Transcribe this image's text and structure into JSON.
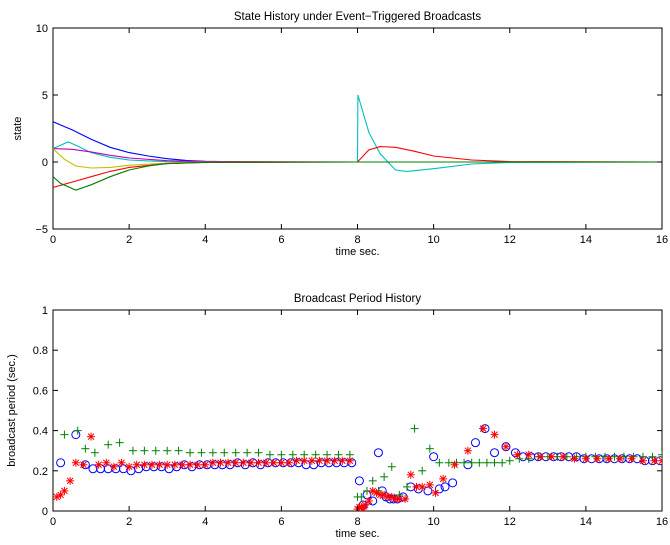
{
  "chart_data": [
    {
      "type": "line",
      "title": "State History under Event−Triggered Broadcasts",
      "xlabel": "time sec.",
      "ylabel": "state",
      "xlim": [
        0,
        16
      ],
      "ylim": [
        -5,
        10
      ],
      "xticks": [
        "0",
        "2",
        "4",
        "6",
        "8",
        "10",
        "12",
        "14",
        "16"
      ],
      "yticks": [
        "−5",
        "0",
        "5",
        "10"
      ],
      "grid": false,
      "series": [
        {
          "color": "#0000ff",
          "x": [
            0,
            0.5,
            1,
            1.5,
            2,
            2.5,
            3,
            3.5,
            4,
            5,
            6,
            8,
            16
          ],
          "values": [
            3,
            2.4,
            1.7,
            1.1,
            0.7,
            0.45,
            0.25,
            0.12,
            0.05,
            0.01,
            0,
            0,
            0
          ]
        },
        {
          "color": "#00bfbf",
          "x": [
            0,
            0.4,
            0.6,
            1,
            1.5,
            2,
            2.5,
            3,
            4,
            6,
            8,
            8.01,
            8.3,
            8.6,
            9,
            9.3,
            10,
            11,
            12,
            16
          ],
          "values": [
            1,
            1.5,
            1.25,
            0.7,
            0.35,
            0.15,
            0.08,
            0.03,
            0,
            0,
            0,
            5,
            2.2,
            0.6,
            -0.6,
            -0.7,
            -0.5,
            -0.15,
            -0.03,
            0
          ]
        },
        {
          "color": "#bf00bf",
          "x": [
            0,
            0.5,
            1,
            1.5,
            2,
            3,
            4,
            8,
            16
          ],
          "values": [
            1,
            0.95,
            0.75,
            0.5,
            0.3,
            0.1,
            0.03,
            0,
            0
          ]
        },
        {
          "color": "#bfbf00",
          "x": [
            0,
            0.3,
            0.6,
            1,
            1.5,
            2,
            3,
            4,
            8,
            16
          ],
          "values": [
            1,
            0.2,
            -0.3,
            -0.45,
            -0.4,
            -0.25,
            -0.08,
            0,
            0,
            0
          ]
        },
        {
          "color": "#ff0000",
          "x": [
            0,
            0.5,
            1,
            1.5,
            2,
            3,
            4,
            8,
            8.3,
            8.6,
            9,
            9.5,
            10,
            11,
            12,
            16
          ],
          "values": [
            -1.9,
            -1.5,
            -1.1,
            -0.7,
            -0.4,
            -0.12,
            -0.03,
            0,
            0.9,
            1.15,
            1.1,
            0.8,
            0.45,
            0.15,
            0.03,
            0
          ]
        },
        {
          "color": "#008000",
          "x": [
            0,
            0.2,
            0.6,
            1,
            1.5,
            2,
            2.5,
            3,
            4,
            8,
            16
          ],
          "values": [
            -1.1,
            -1.6,
            -2.1,
            -1.7,
            -1.1,
            -0.6,
            -0.3,
            -0.12,
            -0.02,
            0,
            0
          ]
        }
      ]
    },
    {
      "type": "scatter",
      "title": "Broadcast Period History",
      "xlabel": "time sec.",
      "ylabel": "broadcast period (sec.)",
      "xlim": [
        0,
        16
      ],
      "ylim": [
        0,
        1
      ],
      "xticks": [
        "0",
        "2",
        "4",
        "6",
        "8",
        "10",
        "12",
        "14",
        "16"
      ],
      "yticks": [
        "0",
        "0.2",
        "0.4",
        "0.6",
        "0.8",
        "1"
      ],
      "grid": false,
      "series": [
        {
          "marker": "circle",
          "color": "#0000ff",
          "x": [
            0.2,
            0.6,
            0.85,
            1.05,
            1.25,
            1.45,
            1.65,
            1.85,
            2.05,
            2.25,
            2.45,
            2.65,
            2.85,
            3.05,
            3.25,
            3.45,
            3.65,
            3.85,
            4.05,
            4.25,
            4.45,
            4.65,
            4.85,
            5.05,
            5.25,
            5.45,
            5.65,
            5.85,
            6.05,
            6.25,
            6.45,
            6.65,
            6.85,
            7.05,
            7.25,
            7.45,
            7.65,
            7.85,
            8.05,
            8.15,
            8.25,
            8.4,
            8.55,
            8.65,
            8.75,
            8.85,
            8.95,
            9.05,
            9.2,
            9.4,
            9.6,
            9.85,
            10.0,
            10.15,
            10.3,
            10.5,
            10.9,
            11.1,
            11.35,
            11.6,
            11.9,
            12.15,
            12.35,
            12.55,
            12.75,
            12.95,
            13.15,
            13.35,
            13.55,
            13.75,
            13.95,
            14.15,
            14.35,
            14.55,
            14.75,
            14.95,
            15.15,
            15.35,
            15.55,
            15.75,
            15.95
          ],
          "values": [
            0.24,
            0.38,
            0.23,
            0.21,
            0.21,
            0.21,
            0.21,
            0.21,
            0.2,
            0.21,
            0.22,
            0.22,
            0.22,
            0.21,
            0.22,
            0.23,
            0.22,
            0.23,
            0.23,
            0.23,
            0.23,
            0.23,
            0.24,
            0.23,
            0.24,
            0.23,
            0.24,
            0.24,
            0.24,
            0.24,
            0.24,
            0.23,
            0.23,
            0.24,
            0.24,
            0.24,
            0.24,
            0.24,
            0.15,
            0.03,
            0.08,
            0.05,
            0.29,
            0.1,
            0.07,
            0.06,
            0.06,
            0.06,
            0.07,
            0.12,
            0.11,
            0.1,
            0.27,
            0.11,
            0.12,
            0.14,
            0.23,
            0.34,
            0.41,
            0.29,
            0.32,
            0.29,
            0.27,
            0.27,
            0.27,
            0.27,
            0.27,
            0.27,
            0.27,
            0.27,
            0.26,
            0.26,
            0.26,
            0.26,
            0.26,
            0.26,
            0.26,
            0.26,
            0.25,
            0.25,
            0.25
          ]
        },
        {
          "marker": "plus",
          "color": "#008000",
          "x": [
            0.3,
            0.65,
            0.85,
            1.1,
            1.45,
            1.75,
            2.1,
            2.4,
            2.7,
            3.0,
            3.3,
            3.6,
            3.9,
            4.2,
            4.5,
            4.8,
            5.1,
            5.4,
            5.7,
            6.0,
            6.3,
            6.6,
            6.9,
            7.2,
            7.5,
            7.8,
            8.0,
            8.1,
            8.25,
            8.4,
            8.55,
            8.7,
            8.9,
            9.1,
            9.3,
            9.5,
            9.7,
            9.9,
            10.15,
            10.4,
            10.6,
            10.8,
            11.0,
            11.2,
            11.4,
            11.6,
            11.8,
            12.0,
            12.25,
            12.5,
            12.75,
            13.0,
            13.25,
            13.5,
            13.75,
            14.0,
            14.25,
            14.5,
            14.75,
            15.0,
            15.25,
            15.5,
            15.75,
            16.0
          ],
          "values": [
            0.38,
            0.4,
            0.31,
            0.29,
            0.33,
            0.34,
            0.3,
            0.3,
            0.3,
            0.3,
            0.3,
            0.29,
            0.29,
            0.29,
            0.29,
            0.29,
            0.29,
            0.29,
            0.28,
            0.28,
            0.28,
            0.28,
            0.28,
            0.28,
            0.28,
            0.28,
            0.07,
            0.07,
            0.1,
            0.15,
            0.1,
            0.17,
            0.22,
            0.08,
            0.12,
            0.41,
            0.2,
            0.31,
            0.24,
            0.24,
            0.24,
            0.24,
            0.24,
            0.24,
            0.24,
            0.24,
            0.24,
            0.25,
            0.26,
            0.26,
            0.27,
            0.27,
            0.27,
            0.27,
            0.27,
            0.27,
            0.27,
            0.27,
            0.27,
            0.27,
            0.27,
            0.27,
            0.27,
            0.28
          ]
        },
        {
          "marker": "star",
          "color": "#ff0000",
          "x": [
            0.1,
            0.2,
            0.3,
            0.45,
            0.6,
            0.8,
            1.0,
            1.2,
            1.4,
            1.6,
            1.8,
            2.0,
            2.2,
            2.4,
            2.6,
            2.8,
            3.0,
            3.2,
            3.4,
            3.6,
            3.8,
            4.0,
            4.2,
            4.4,
            4.6,
            4.8,
            5.0,
            5.2,
            5.4,
            5.6,
            5.8,
            6.0,
            6.2,
            6.4,
            6.6,
            6.8,
            7.0,
            7.2,
            7.4,
            7.6,
            7.8,
            8.0,
            8.05,
            8.1,
            8.15,
            8.2,
            8.3,
            8.4,
            8.5,
            8.6,
            8.7,
            8.8,
            8.9,
            9.0,
            9.1,
            9.25,
            9.4,
            9.55,
            9.7,
            9.9,
            10.05,
            10.25,
            10.55,
            10.9,
            11.3,
            11.6,
            11.9,
            12.2,
            12.5,
            12.8,
            13.1,
            13.4,
            13.7,
            14.0,
            14.3,
            14.6,
            14.9,
            15.2,
            15.5,
            15.8,
            16.0
          ],
          "values": [
            0.07,
            0.08,
            0.1,
            0.15,
            0.24,
            0.23,
            0.37,
            0.23,
            0.24,
            0.22,
            0.24,
            0.22,
            0.23,
            0.23,
            0.23,
            0.23,
            0.23,
            0.23,
            0.23,
            0.23,
            0.23,
            0.23,
            0.24,
            0.24,
            0.24,
            0.24,
            0.24,
            0.24,
            0.24,
            0.24,
            0.24,
            0.24,
            0.24,
            0.25,
            0.25,
            0.25,
            0.25,
            0.25,
            0.25,
            0.25,
            0.25,
            0.01,
            0.02,
            0.02,
            0.01,
            0.03,
            0.05,
            0.1,
            0.09,
            0.08,
            0.08,
            0.07,
            0.07,
            0.06,
            0.06,
            0.06,
            0.18,
            0.12,
            0.12,
            0.13,
            0.09,
            0.16,
            0.23,
            0.3,
            0.41,
            0.38,
            0.32,
            0.28,
            0.28,
            0.27,
            0.27,
            0.27,
            0.26,
            0.26,
            0.26,
            0.26,
            0.26,
            0.26,
            0.25,
            0.25,
            0.25
          ]
        }
      ]
    }
  ]
}
